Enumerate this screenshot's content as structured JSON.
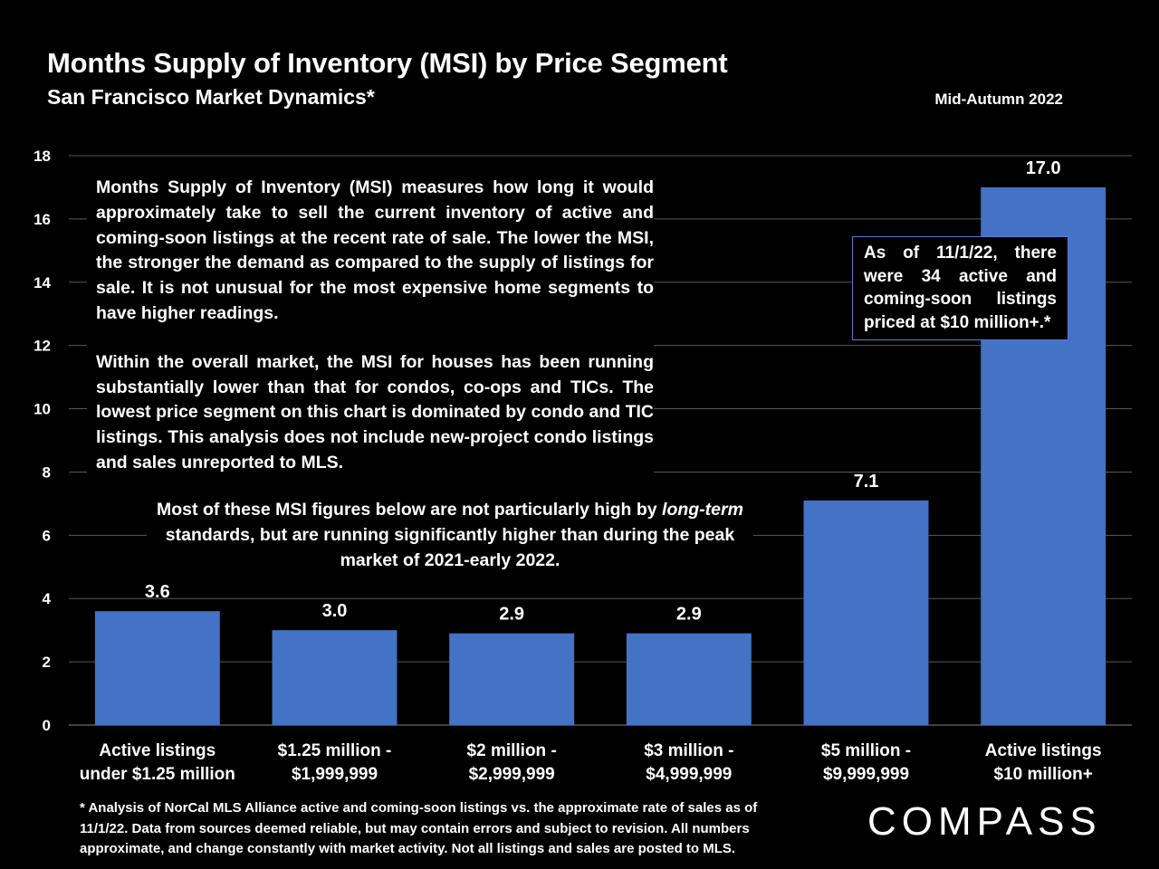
{
  "header": {
    "title": "Months Supply of Inventory (MSI) by Price Segment",
    "subtitle": "San Francisco Market Dynamics*",
    "date_label": "Mid-Autumn 2022"
  },
  "chart_data": {
    "type": "bar",
    "categories": [
      [
        "Active listings",
        "under $1.25 million"
      ],
      [
        "$1.25 million -",
        "$1,999,999"
      ],
      [
        "$2 million -",
        "$2,999,999"
      ],
      [
        "$3 million -",
        "$4,999,999"
      ],
      [
        "$5 million -",
        "$9,999,999"
      ],
      [
        "Active listings",
        "$10 million+"
      ]
    ],
    "values": [
      3.6,
      3.0,
      2.9,
      2.9,
      7.1,
      17.0
    ],
    "data_labels": [
      "3.6",
      "3.0",
      "2.9",
      "2.9",
      "7.1",
      "17.0"
    ],
    "ylim": [
      0,
      18
    ],
    "yticks": [
      0,
      2,
      4,
      6,
      8,
      10,
      12,
      14,
      16,
      18
    ],
    "grid": true,
    "bar_color": "#4472c4",
    "grid_color": "#595959"
  },
  "notes": {
    "main_p1": "Months Supply of Inventory (MSI) measures how long it would approximately take to sell the current inventory of active and coming-soon listings at the recent rate of sale. The lower the MSI, the stronger the demand as compared to the supply of listings for sale. It is not unusual for the most expensive home segments to have higher readings.",
    "main_p2": "Within the overall market, the MSI for houses has been running substantially lower than that for condos, co-ops and TICs. The lowest price segment on this chart is dominated by condo and TIC listings. This analysis does not include new-project condo listings and sales unreported to MLS.",
    "center_a": "Most of these MSI figures below are not particularly high by ",
    "center_em": "long-term",
    "center_b": " standards, but are running significantly higher than during the peak market of 2021-early 2022.",
    "box": "As of 11/1/22, there were 34 active and coming-soon listings priced at $10 million+.*",
    "box_border_color": "#5b7bd6"
  },
  "footnote": "* Analysis of NorCal MLS Alliance active and coming-soon listings vs. the approximate rate of sales as of 11/1/22. Data from sources deemed reliable, but may contain errors and subject to revision. All numbers approximate, and change constantly with market activity. Not all listings and sales are posted to MLS.",
  "logo": "COMPASS"
}
